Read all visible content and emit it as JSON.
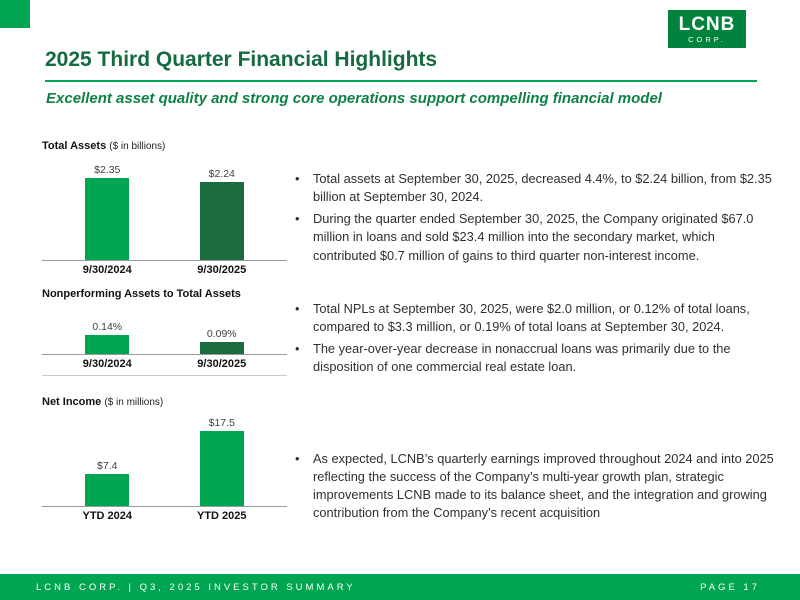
{
  "logo": {
    "name": "LCNB",
    "sub": "CORP."
  },
  "header": {
    "title": "2025 Third Quarter Financial Highlights",
    "subtitle": "Excellent asset quality and strong core operations support compelling financial model"
  },
  "colors": {
    "bright_green": "#00A551",
    "dark_green": "#1C6B3E",
    "title_green": "#166A3F",
    "footer_green": "#00A551"
  },
  "chart_data": [
    {
      "type": "bar",
      "title": "Total Assets",
      "title_suffix": "($ in billions)",
      "categories": [
        "9/30/2024",
        "9/30/2025"
      ],
      "values": [
        2.35,
        2.24
      ],
      "value_labels": [
        "$2.35",
        "$2.24"
      ],
      "bar_colors": [
        "bright",
        "dark"
      ],
      "ylim": [
        0,
        2.5
      ]
    },
    {
      "type": "bar",
      "title": "Nonperforming Assets to Total Assets",
      "title_suffix": "",
      "categories": [
        "9/30/2024",
        "9/30/2025"
      ],
      "values": [
        0.14,
        0.09
      ],
      "value_labels": [
        "0.14%",
        "0.09%"
      ],
      "bar_colors": [
        "bright",
        "dark"
      ],
      "ylim": [
        0,
        0.18
      ]
    },
    {
      "type": "bar",
      "title": "Net Income",
      "title_suffix": "($ in millions)",
      "categories": [
        "YTD 2024",
        "YTD 2025"
      ],
      "values": [
        7.4,
        17.5
      ],
      "value_labels": [
        "$7.4",
        "$17.5"
      ],
      "bar_colors": [
        "bright",
        "bright"
      ],
      "ylim": [
        0,
        18
      ]
    }
  ],
  "bullets": [
    [
      "Total assets at September 30, 2025, decreased 4.4%, to $2.24 billion, from $2.35 billion at September 30, 2024.",
      "During the quarter ended September 30, 2025, the Company originated $67.0 million in loans and sold $23.4 million into the secondary market, which contributed $0.7 million of gains to third quarter non-interest income."
    ],
    [
      "Total NPLs at September 30, 2025, were $2.0 million, or 0.12% of total loans, compared to $3.3 million, or 0.19% of total loans at September 30, 2024.",
      "The year-over-year decrease in nonaccrual loans was primarily due to the disposition of one commercial real estate loan."
    ],
    [
      "As expected, LCNB’s quarterly earnings improved throughout 2024 and into 2025 reflecting the success of the Company’s multi-year growth plan, strategic improvements LCNB made to its balance sheet, and the integration and growing contribution from the Company’s recent acquisition"
    ]
  ],
  "footer": {
    "left": "LCNB CORP.  |  Q3, 2025 INVESTOR SUMMARY",
    "right": "PAGE 17"
  }
}
